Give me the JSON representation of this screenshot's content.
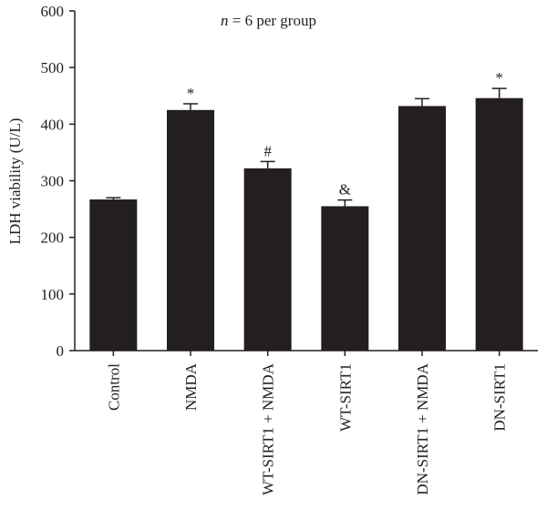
{
  "chart_data": {
    "type": "bar",
    "title": "",
    "ylabel": "LDH viability (U/L)",
    "xlabel": "",
    "ylim": [
      0,
      600
    ],
    "yticks": [
      0,
      100,
      200,
      300,
      400,
      500,
      600
    ],
    "annotation": {
      "n_symbol": "n",
      "text": " = 6 per group"
    },
    "categories": [
      "Control",
      "NMDA",
      "WT-SIRT1 + NMDA",
      "WT-SIRT1",
      "DN-SIRT1 + NMDA",
      "DN-SIRT1"
    ],
    "values": [
      267,
      425,
      322,
      255,
      432,
      446
    ],
    "errors": [
      3,
      11,
      12,
      11,
      13,
      17
    ],
    "significance": [
      "",
      "*",
      "#",
      "&",
      "",
      "*"
    ],
    "bar_color": "#231f20",
    "axis_color": "#231f20"
  }
}
